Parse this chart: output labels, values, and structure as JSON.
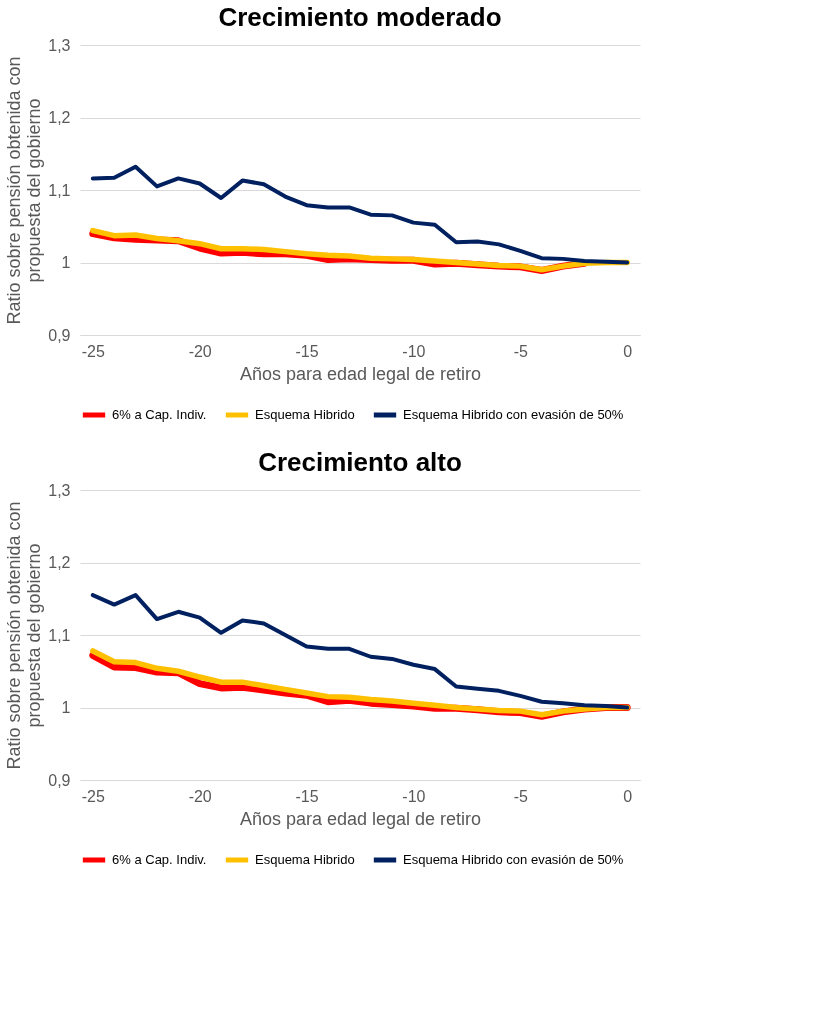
{
  "chart_data": [
    {
      "type": "line",
      "title": "Crecimiento moderado",
      "xlabel": "Años para edad legal de retiro",
      "ylabel": "Ratio sobre pensión obtenida con propuesta del gobierno",
      "x": [
        -25,
        -24,
        -23,
        -22,
        -21,
        -20,
        -19,
        -18,
        -17,
        -16,
        -15,
        -14,
        -13,
        -12,
        -11,
        -10,
        -9,
        -8,
        -7,
        -6,
        -5,
        -4,
        -3,
        -2,
        -1,
        0
      ],
      "series": [
        {
          "name": "6% a Cap. Indiv.",
          "color": "#ff0000",
          "values": [
            1.04,
            1.034,
            1.032,
            1.031,
            1.03,
            1.02,
            1.013,
            1.014,
            1.012,
            1.012,
            1.01,
            1.004,
            1.005,
            1.004,
            1.003,
            1.003,
            0.998,
            0.999,
            0.997,
            0.995,
            0.994,
            0.989,
            0.995,
            0.999,
            null,
            null
          ]
        },
        {
          "name": "Esquema Hibrido",
          "color": "#ffc000",
          "values": [
            1.044,
            1.037,
            1.038,
            1.033,
            1.03,
            1.026,
            1.019,
            1.019,
            1.018,
            1.015,
            1.012,
            1.01,
            1.009,
            1.006,
            1.005,
            1.004,
            1.002,
            1.0,
            0.998,
            0.996,
            0.995,
            0.99,
            0.995,
            0.999,
            1.0,
            1.0
          ]
        },
        {
          "name": "Esquema Hibrido con evasión de 50%",
          "color": "#002060",
          "values": [
            1.116,
            1.117,
            1.132,
            1.105,
            1.116,
            1.109,
            1.089,
            1.113,
            1.108,
            1.091,
            1.079,
            1.076,
            1.076,
            1.066,
            1.065,
            1.055,
            1.052,
            1.028,
            1.029,
            1.025,
            1.016,
            1.006,
            1.005,
            1.002,
            1.001,
            1.0
          ]
        }
      ],
      "xlim": [
        -25.6,
        0.6
      ],
      "xticks": [
        -25,
        -20,
        -15,
        -10,
        -5,
        0
      ],
      "ylim": [
        0.9,
        1.3
      ],
      "yticks": [
        {
          "value": 0.9,
          "label": "0,9"
        },
        1,
        {
          "value": 1.1,
          "label": "1,1"
        },
        {
          "value": 1.2,
          "label": "1,2"
        },
        {
          "value": 1.3,
          "label": "1,3"
        }
      ],
      "grid": "y",
      "legend": "bottom",
      "marker": "none",
      "line_style": "solid"
    },
    {
      "type": "line",
      "title": "Crecimiento alto",
      "xlabel": "Años para edad legal de retiro",
      "ylabel": "Ratio sobre pensión obtenida con propuesta del gobierno",
      "x": [
        -25,
        -24,
        -23,
        -22,
        -21,
        -20,
        -19,
        -18,
        -17,
        -16,
        -15,
        -14,
        -13,
        -12,
        -11,
        -10,
        -9,
        -8,
        -7,
        -6,
        -5,
        -4,
        -3,
        -2,
        -1,
        0
      ],
      "series": [
        {
          "name": "6% a Cap. Indiv.",
          "color": "#ff0000",
          "values": [
            1.072,
            1.056,
            1.055,
            1.049,
            1.048,
            1.033,
            1.027,
            1.028,
            1.024,
            1.02,
            1.017,
            1.008,
            1.01,
            1.006,
            1.004,
            1.002,
            0.999,
            0.999,
            0.997,
            0.994,
            0.993,
            0.988,
            0.994,
            0.998,
            1.0,
            1.0
          ]
        },
        {
          "name": "Esquema Hibrido",
          "color": "#ffc000",
          "values": [
            1.078,
            1.063,
            1.062,
            1.054,
            1.05,
            1.042,
            1.035,
            1.035,
            1.03,
            1.025,
            1.02,
            1.015,
            1.014,
            1.011,
            1.009,
            1.006,
            1.003,
            1.0,
            0.998,
            0.996,
            0.995,
            0.99,
            0.995,
            0.998,
            1.0,
            1.0
          ]
        },
        {
          "name": "Esquema Hibrido con evasión de 50%",
          "color": "#002060",
          "values": [
            1.155,
            1.142,
            1.155,
            1.122,
            1.132,
            1.124,
            1.103,
            1.12,
            1.116,
            1.1,
            1.084,
            1.081,
            1.081,
            1.07,
            1.067,
            1.059,
            1.053,
            1.029,
            1.026,
            1.023,
            1.016,
            1.008,
            1.006,
            1.003,
            1.002,
            1.0
          ]
        }
      ],
      "xlim": [
        -25.6,
        0.6
      ],
      "xticks": [
        -25,
        -20,
        -15,
        -10,
        -5,
        0
      ],
      "ylim": [
        0.9,
        1.3
      ],
      "yticks": [
        {
          "value": 0.9,
          "label": "0,9"
        },
        1,
        {
          "value": 1.1,
          "label": "1,1"
        },
        {
          "value": 1.2,
          "label": "1,2"
        },
        {
          "value": 1.3,
          "label": "1,3"
        }
      ],
      "grid": "y",
      "legend": "bottom",
      "marker": "none",
      "line_style": "solid"
    }
  ]
}
